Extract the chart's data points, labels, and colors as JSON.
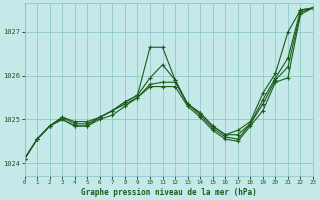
{
  "title": "Graphe pression niveau de la mer (hPa)",
  "background_color": "#c5e8e8",
  "grid_color": "#88c4c4",
  "line_color": "#1a5c1a",
  "x_ticks": [
    0,
    1,
    2,
    3,
    4,
    5,
    6,
    7,
    8,
    9,
    10,
    11,
    12,
    13,
    14,
    15,
    16,
    17,
    18,
    19,
    20,
    21,
    22,
    23
  ],
  "y_ticks": [
    1024,
    1025,
    1026,
    1027
  ],
  "xlim": [
    0,
    23
  ],
  "ylim": [
    1023.7,
    1027.65
  ],
  "series": [
    [
      1024.1,
      1024.55,
      1024.85,
      1025.05,
      1024.95,
      1024.95,
      1025.05,
      1025.2,
      1025.4,
      1025.55,
      1026.65,
      1026.65,
      1025.9,
      1025.35,
      1025.15,
      1024.85,
      1024.65,
      1024.75,
      1024.95,
      1025.6,
      1026.05,
      1027.0,
      1027.5,
      1027.55
    ],
    [
      1024.1,
      1024.55,
      1024.85,
      1025.05,
      1024.9,
      1024.9,
      1025.05,
      1025.2,
      1025.4,
      1025.55,
      1025.95,
      1026.25,
      1025.9,
      1025.35,
      1025.15,
      1024.85,
      1024.65,
      1024.65,
      1024.9,
      1025.45,
      1025.95,
      1026.4,
      1027.5,
      1027.55
    ],
    [
      1024.1,
      1024.55,
      1024.85,
      1025.0,
      1024.85,
      1024.85,
      1025.05,
      1025.2,
      1025.35,
      1025.5,
      1025.8,
      1025.85,
      1025.85,
      1025.35,
      1025.1,
      1024.8,
      1024.6,
      1024.55,
      1024.9,
      1025.35,
      1025.9,
      1026.2,
      1027.45,
      1027.55
    ],
    [
      1024.1,
      1024.55,
      1024.85,
      1025.0,
      1024.85,
      1024.85,
      1025.0,
      1025.1,
      1025.3,
      1025.5,
      1025.75,
      1025.75,
      1025.75,
      1025.3,
      1025.05,
      1024.75,
      1024.55,
      1024.5,
      1024.85,
      1025.2,
      1025.85,
      1025.95,
      1027.4,
      1027.55
    ]
  ]
}
